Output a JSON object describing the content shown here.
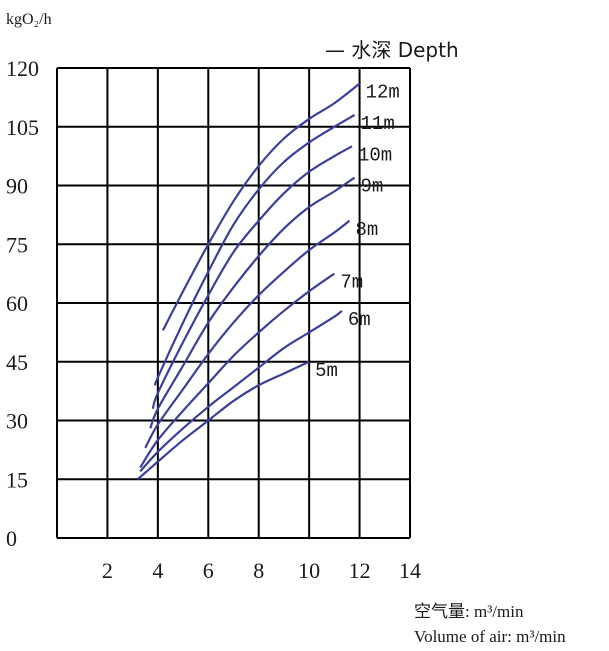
{
  "chart_data": {
    "type": "line",
    "ylabel": "kgO₂/h",
    "xlabel_cn": "空气量: m³/min",
    "xlabel_en": "Volume of air: m³/min",
    "legend": "— 水深 Depth",
    "xlim": [
      0,
      14
    ],
    "ylim": [
      0,
      120
    ],
    "x_ticks": [
      2,
      4,
      6,
      8,
      10,
      12,
      14
    ],
    "y_ticks": [
      0,
      15,
      30,
      45,
      60,
      75,
      90,
      105,
      120
    ],
    "grid": true,
    "line_color": "#3b3f9a",
    "series": [
      {
        "name": "5m",
        "x": [
          3.2,
          4,
          5,
          6,
          7,
          8,
          9,
          10
        ],
        "y": [
          15,
          19.5,
          25,
          30,
          35,
          39,
          42,
          45
        ]
      },
      {
        "name": "6m",
        "x": [
          3.3,
          4,
          5,
          6,
          7,
          8,
          9,
          10,
          11,
          11.3
        ],
        "y": [
          17,
          22,
          28,
          33.5,
          38.5,
          43.5,
          48.5,
          52.5,
          56.5,
          58
        ]
      },
      {
        "name": "7m",
        "x": [
          3.3,
          4,
          5,
          6,
          7,
          8,
          9,
          10,
          11
        ],
        "y": [
          18,
          25,
          32.5,
          39.5,
          46.5,
          52.5,
          58,
          63,
          67.5
        ]
      },
      {
        "name": "8m",
        "x": [
          3.5,
          4,
          5,
          6,
          7,
          8,
          9,
          10,
          11,
          11.6
        ],
        "y": [
          23,
          29,
          38,
          47,
          55,
          62,
          68,
          73.5,
          78,
          81
        ]
      },
      {
        "name": "9m",
        "x": [
          3.7,
          4,
          5,
          6,
          7,
          8,
          9,
          10,
          11,
          11.8
        ],
        "y": [
          28,
          33,
          44,
          55,
          64,
          72,
          79,
          84.5,
          88.5,
          92
        ]
      },
      {
        "name": "10m",
        "x": [
          3.8,
          4,
          5,
          6,
          7,
          8,
          9,
          10,
          11,
          11.7
        ],
        "y": [
          33,
          37,
          50,
          62,
          73,
          81,
          88,
          93.5,
          97.5,
          100
        ]
      },
      {
        "name": "11m",
        "x": [
          3.9,
          4,
          5,
          6,
          7,
          8,
          9,
          10,
          11,
          11.8
        ],
        "y": [
          39,
          41,
          55,
          68,
          80,
          89,
          96,
          101,
          105,
          108
        ]
      },
      {
        "name": "12m",
        "x": [
          4.2,
          5,
          6,
          7,
          8,
          9,
          10,
          11,
          12
        ],
        "y": [
          53,
          63,
          75,
          86,
          95,
          102,
          107,
          111,
          116
        ]
      }
    ]
  }
}
